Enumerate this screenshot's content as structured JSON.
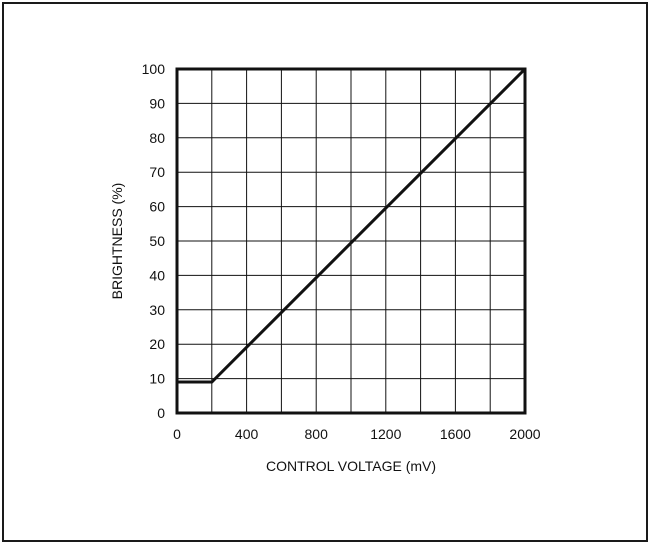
{
  "chart_data": {
    "type": "line",
    "title": "",
    "xlabel": "CONTROL VOLTAGE (mV)",
    "ylabel": "BRIGHTNESS (%)",
    "xlim": [
      0,
      2000
    ],
    "ylim": [
      0,
      100
    ],
    "xticks": [
      0,
      200,
      400,
      600,
      800,
      1000,
      1200,
      1400,
      1600,
      1800,
      2000
    ],
    "xtick_labels": [
      "0",
      "",
      "400",
      "",
      "800",
      "",
      "1200",
      "",
      "1600",
      "",
      "2000"
    ],
    "yticks": [
      0,
      10,
      20,
      30,
      40,
      50,
      60,
      70,
      80,
      90,
      100
    ],
    "ytick_labels": [
      "0",
      "10",
      "20",
      "30",
      "40",
      "50",
      "60",
      "70",
      "80",
      "90",
      "100"
    ],
    "grid": true,
    "series": [
      {
        "x": [
          0,
          200,
          2000
        ],
        "y": [
          9,
          9,
          100
        ]
      }
    ]
  },
  "colors": {
    "line": "#111111",
    "grid": "#111111",
    "frame": "#111111"
  }
}
